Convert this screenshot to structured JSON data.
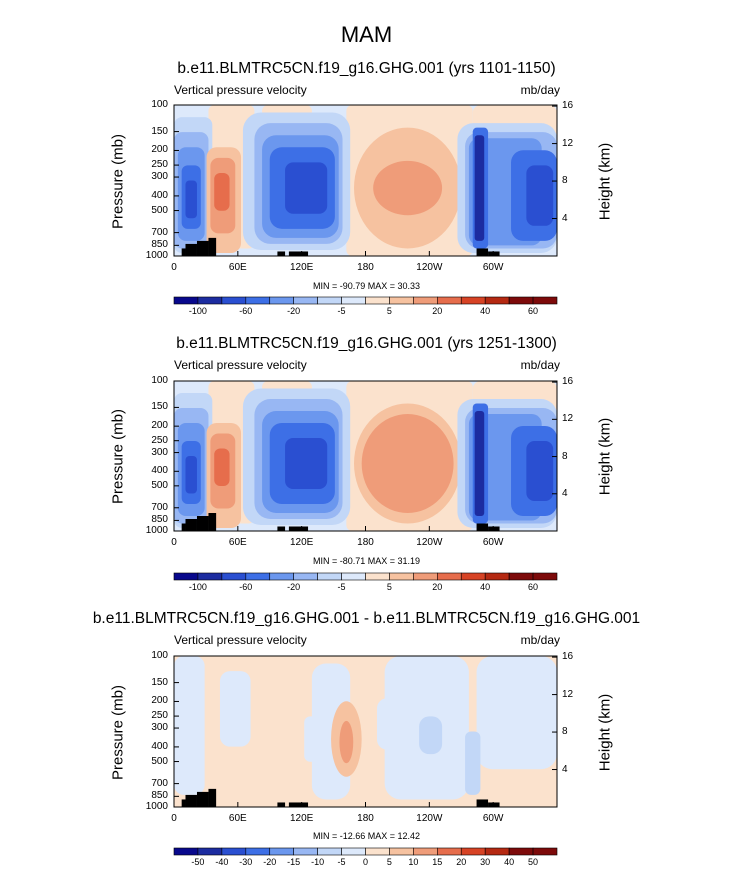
{
  "main_title": "MAM",
  "palette": {
    "dark_navy": "#08088c",
    "navy": "#1c2ca0",
    "blue1": "#2a4fd1",
    "blue2": "#3d6fe6",
    "blue3": "#6b97ee",
    "blue4": "#98b7f3",
    "blue5": "#c2d7f7",
    "blue6": "#dde9fb",
    "red6": "#fbe2cd",
    "red5": "#f6c2a0",
    "red4": "#ef9c79",
    "red3": "#e66d4c",
    "red2": "#d74325",
    "red1": "#b52912",
    "dark_red": "#7d0a0a",
    "topo": "#000000"
  },
  "chart_data": [
    {
      "type": "heatmap",
      "title": "b.e11.BLMTRC5CN.f19_g16.GHG.001 (yrs 1101-1150)",
      "left_string": "Vertical pressure velocity",
      "right_string": "mb/day",
      "ylabel": "Pressure (mb)",
      "right_ylabel": "Height (km)",
      "pressure_ticks": [
        "100",
        "150",
        "200",
        "250",
        "300",
        "400",
        "500",
        "700",
        "850",
        "1000"
      ],
      "height_ticks": [
        "16",
        "12",
        "8",
        "4"
      ],
      "x_ticks": [
        "0",
        "60E",
        "120E",
        "180",
        "120W",
        "60W"
      ],
      "min_max": "MIN = -90.79   MAX =  30.33",
      "colorbar_labels": [
        "-100",
        "-60",
        "-20",
        "-5",
        "5",
        "20",
        "40",
        "60"
      ],
      "variant": 1
    },
    {
      "type": "heatmap",
      "title": "b.e11.BLMTRC5CN.f19_g16.GHG.001 (yrs 1251-1300)",
      "left_string": "Vertical pressure velocity",
      "right_string": "mb/day",
      "ylabel": "Pressure (mb)",
      "right_ylabel": "Height (km)",
      "pressure_ticks": [
        "100",
        "150",
        "200",
        "250",
        "300",
        "400",
        "500",
        "700",
        "850",
        "1000"
      ],
      "height_ticks": [
        "16",
        "12",
        "8",
        "4"
      ],
      "x_ticks": [
        "0",
        "60E",
        "120E",
        "180",
        "120W",
        "60W"
      ],
      "min_max": "MIN = -80.71   MAX =  31.19",
      "colorbar_labels": [
        "-100",
        "-60",
        "-20",
        "-5",
        "5",
        "20",
        "40",
        "60"
      ],
      "variant": 2
    },
    {
      "type": "heatmap",
      "title": "b.e11.BLMTRC5CN.f19_g16.GHG.001 - b.e11.BLMTRC5CN.f19_g16.GHG.001",
      "left_string": "Vertical pressure velocity",
      "right_string": "mb/day",
      "ylabel": "Pressure (mb)",
      "right_ylabel": "Height (km)",
      "pressure_ticks": [
        "100",
        "150",
        "200",
        "250",
        "300",
        "400",
        "500",
        "700",
        "850",
        "1000"
      ],
      "height_ticks": [
        "16",
        "12",
        "8",
        "4"
      ],
      "x_ticks": [
        "0",
        "60E",
        "120E",
        "180",
        "120W",
        "60W"
      ],
      "min_max": "MIN = -12.66   MAX =  12.42",
      "colorbar_labels": [
        "-50",
        "-40",
        "-30",
        "-20",
        "-15",
        "-10",
        "-5",
        "0",
        "5",
        "10",
        "15",
        "20",
        "30",
        "40",
        "50"
      ],
      "variant": 3
    }
  ]
}
